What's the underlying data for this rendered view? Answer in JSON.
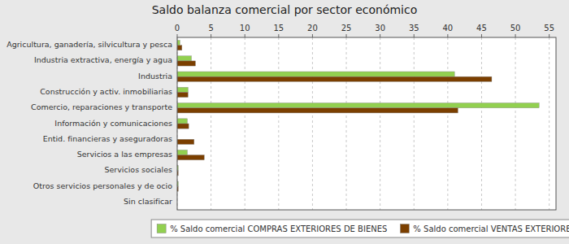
{
  "chart_data": {
    "type": "bar",
    "orientation": "horizontal",
    "title": "Saldo balanza comercial por sector económico",
    "categories": [
      "Agricultura, ganadería, silvicultura y pesca",
      "Industria extractiva, energía y agua",
      "Industria",
      "Construcción y activ. inmobiliarias",
      "Comercio, reparaciones y transporte",
      "Información y comunicaciones",
      "Entid. financieras y aseguradoras",
      "Servicios a las empresas",
      "Servicios sociales",
      "Otros servicios personales y de ocio",
      "Sin clasificar"
    ],
    "series": [
      {
        "name": "% Saldo comercial COMPRAS EXTERIORES DE BIENES",
        "color": "#92D050",
        "values": [
          0.4,
          2.1,
          41.0,
          1.6,
          53.5,
          1.5,
          0.0,
          1.5,
          0.15,
          0.15,
          0.0
        ]
      },
      {
        "name": "% Saldo comercial VENTAS EXTERIORES",
        "color": "#7B3F00",
        "values": [
          0.7,
          2.7,
          46.5,
          1.6,
          41.5,
          1.7,
          2.5,
          4.0,
          0.15,
          0.15,
          0.0
        ]
      }
    ],
    "xlim": [
      0,
      56
    ],
    "xticks": [
      0,
      5,
      10,
      15,
      20,
      25,
      30,
      35,
      40,
      45,
      50,
      55
    ],
    "grid": true,
    "legend": "bottom"
  }
}
